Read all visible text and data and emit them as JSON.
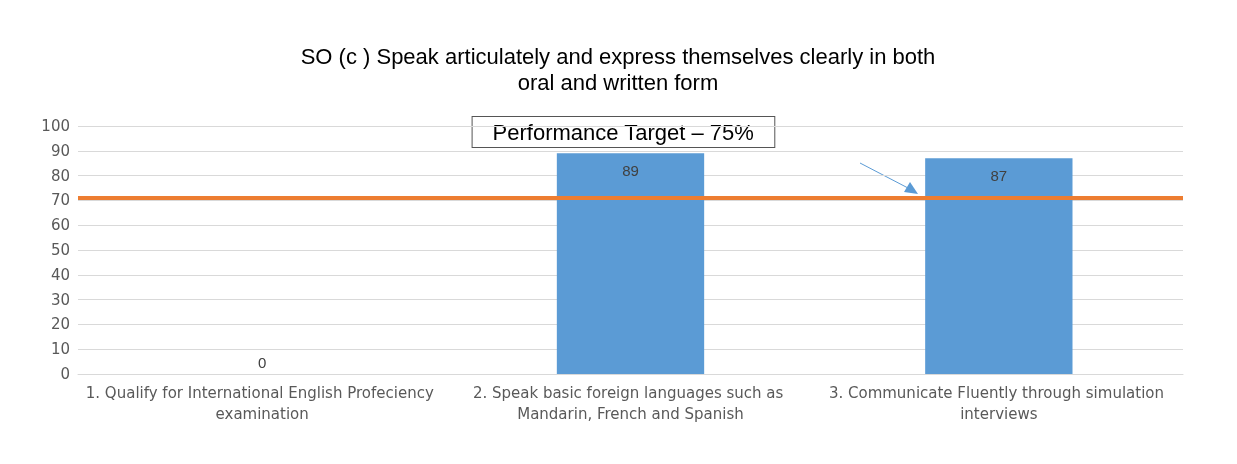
{
  "chart_data": {
    "type": "bar",
    "title": "SO (c ) Speak articulately and express themselves clearly in both\noral and written form",
    "categories": [
      "1. Qualify for International English Profeciency examination",
      "2. Speak basic foreign languages such as Mandarin, French and Spanish",
      "3. Communicate Fluently through simulation interviews"
    ],
    "values": [
      0,
      89,
      87
    ],
    "color": "#5b9bd5",
    "data_labels": true,
    "ylim": [
      0,
      100
    ],
    "yticks": [
      0,
      10,
      20,
      30,
      40,
      50,
      60,
      70,
      80,
      90,
      100
    ],
    "grid": "y",
    "ref_lines": [
      {
        "axis": "y",
        "value": 71,
        "label": "Performance Target – 75%",
        "color": "#ed7d31"
      }
    ]
  }
}
